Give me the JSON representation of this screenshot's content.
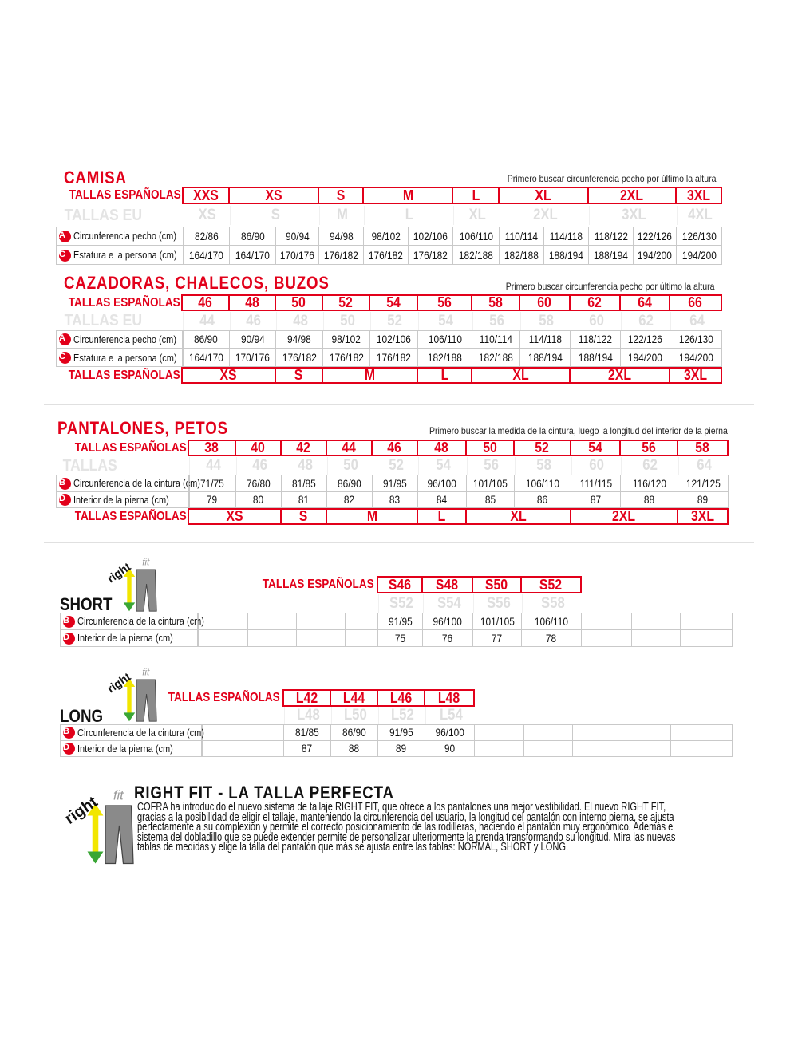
{
  "colors": {
    "accent": "#e2001a",
    "eu_text": "#dedede",
    "grid": "#c9c9c9"
  },
  "camisa": {
    "title": "CAMISA",
    "note": "Primero buscar circunferencia pecho por último la altura",
    "spanish_label": "TALLAS ESPAÑOLAS",
    "eu_label": "TALLAS EU",
    "spanish_sizes": [
      {
        "label": "XXS",
        "span": 1
      },
      {
        "label": "XS",
        "span": 2
      },
      {
        "label": "S",
        "span": 1
      },
      {
        "label": "M",
        "span": 2
      },
      {
        "label": "L",
        "span": 1
      },
      {
        "label": "XL",
        "span": 2
      },
      {
        "label": "2XL",
        "span": 2
      },
      {
        "label": "3XL",
        "span": 1
      }
    ],
    "eu_sizes": [
      {
        "label": "XS",
        "span": 1
      },
      {
        "label": "S",
        "span": 2
      },
      {
        "label": "M",
        "span": 1
      },
      {
        "label": "L",
        "span": 2
      },
      {
        "label": "XL",
        "span": 1
      },
      {
        "label": "2XL",
        "span": 2
      },
      {
        "label": "3XL",
        "span": 2
      },
      {
        "label": "4XL",
        "span": 1
      }
    ],
    "rows": [
      {
        "badge": "A",
        "label": "Circunferencia pecho (cm)",
        "values": [
          "82/86",
          "86/90",
          "90/94",
          "94/98",
          "98/102",
          "102/106",
          "106/110",
          "110/114",
          "114/118",
          "118/122",
          "122/126",
          "126/130"
        ]
      },
      {
        "badge": "C",
        "label": "Estatura e la persona (cm)",
        "values": [
          "164/170",
          "164/170",
          "170/176",
          "176/182",
          "176/182",
          "176/182",
          "182/188",
          "182/188",
          "188/194",
          "188/194",
          "194/200",
          "194/200"
        ]
      }
    ]
  },
  "cazadoras": {
    "title": "CAZADORAS, CHALECOS, BUZOS",
    "note": "Primero buscar circunferencia pecho por último la altura",
    "spanish_label": "TALLAS ESPAÑOLAS",
    "eu_label": "TALLAS EU",
    "spanish_sizes": [
      {
        "label": "46",
        "span": 1
      },
      {
        "label": "48",
        "span": 1
      },
      {
        "label": "50",
        "span": 1
      },
      {
        "label": "52",
        "span": 1
      },
      {
        "label": "54",
        "span": 1
      },
      {
        "label": "56",
        "span": 1
      },
      {
        "label": "58",
        "span": 1
      },
      {
        "label": "60",
        "span": 1
      },
      {
        "label": "62",
        "span": 1
      },
      {
        "label": "64",
        "span": 1
      },
      {
        "label": "66",
        "span": 1
      }
    ],
    "eu_sizes": [
      {
        "label": "44",
        "span": 1
      },
      {
        "label": "46",
        "span": 1
      },
      {
        "label": "48",
        "span": 1
      },
      {
        "label": "50",
        "span": 1
      },
      {
        "label": "52",
        "span": 1
      },
      {
        "label": "54",
        "span": 1
      },
      {
        "label": "56",
        "span": 1
      },
      {
        "label": "58",
        "span": 1
      },
      {
        "label": "60",
        "span": 1
      },
      {
        "label": "62",
        "span": 1
      },
      {
        "label": "64",
        "span": 1
      }
    ],
    "rows": [
      {
        "badge": "A",
        "label": "Circunferencia pecho (cm)",
        "values": [
          "86/90",
          "90/94",
          "94/98",
          "98/102",
          "102/106",
          "106/110",
          "110/114",
          "114/118",
          "118/122",
          "122/126",
          "126/130"
        ]
      },
      {
        "badge": "C",
        "label": "Estatura e la persona (cm)",
        "values": [
          "164/170",
          "170/176",
          "176/182",
          "176/182",
          "176/182",
          "182/188",
          "182/188",
          "188/194",
          "188/194",
          "194/200",
          "194/200"
        ]
      }
    ],
    "spanish_label_2": "TALLAS ESPAÑOLAS",
    "letter_sizes": [
      {
        "label": "XS",
        "span": 2
      },
      {
        "label": "S",
        "span": 1
      },
      {
        "label": "M",
        "span": 2
      },
      {
        "label": "L",
        "span": 1
      },
      {
        "label": "XL",
        "span": 2
      },
      {
        "label": "2XL",
        "span": 2
      },
      {
        "label": "3XL",
        "span": 1
      }
    ]
  },
  "pantalones": {
    "title": "PANTALONES, PETOS",
    "note": "Primero buscar la medida de la cintura, luego la longitud del interior de la pierna",
    "spanish_label": "TALLAS ESPAÑOLAS",
    "eu_label": "TALLAS",
    "spanish_sizes": [
      {
        "label": "38",
        "span": 1
      },
      {
        "label": "40",
        "span": 1
      },
      {
        "label": "42",
        "span": 1
      },
      {
        "label": "44",
        "span": 1
      },
      {
        "label": "46",
        "span": 1
      },
      {
        "label": "48",
        "span": 1
      },
      {
        "label": "50",
        "span": 1
      },
      {
        "label": "52",
        "span": 1
      },
      {
        "label": "54",
        "span": 1
      },
      {
        "label": "56",
        "span": 1
      },
      {
        "label": "58",
        "span": 1
      }
    ],
    "eu_sizes": [
      {
        "label": "44",
        "span": 1
      },
      {
        "label": "46",
        "span": 1
      },
      {
        "label": "48",
        "span": 1
      },
      {
        "label": "50",
        "span": 1
      },
      {
        "label": "52",
        "span": 1
      },
      {
        "label": "54",
        "span": 1
      },
      {
        "label": "56",
        "span": 1
      },
      {
        "label": "58",
        "span": 1
      },
      {
        "label": "60",
        "span": 1
      },
      {
        "label": "62",
        "span": 1
      },
      {
        "label": "64",
        "span": 1
      }
    ],
    "rows": [
      {
        "badge": "B",
        "label": "Circunferencia de la cintura (cm)",
        "values": [
          "71/75",
          "76/80",
          "81/85",
          "86/90",
          "91/95",
          "96/100",
          "101/105",
          "106/110",
          "111/115",
          "116/120",
          "121/125"
        ]
      },
      {
        "badge": "D",
        "label": "Interior de la pierna (cm)",
        "values": [
          "79",
          "80",
          "81",
          "82",
          "83",
          "84",
          "85",
          "86",
          "87",
          "88",
          "89"
        ]
      }
    ],
    "spanish_label_2": "TALLAS ESPAÑOLAS",
    "letter_sizes": [
      {
        "label": "XS",
        "span": 2
      },
      {
        "label": "S",
        "span": 1
      },
      {
        "label": "M",
        "span": 2
      },
      {
        "label": "L",
        "span": 1
      },
      {
        "label": "XL",
        "span": 2
      },
      {
        "label": "2XL",
        "span": 2
      },
      {
        "label": "3XL",
        "span": 1
      }
    ]
  },
  "short": {
    "title": "SHORT",
    "logo_text": "rightfit",
    "spanish_label": "TALLAS ESPAÑOLAS",
    "spanish_sizes": [
      {
        "label": "S46",
        "span": 1
      },
      {
        "label": "S48",
        "span": 1
      },
      {
        "label": "S50",
        "span": 1
      },
      {
        "label": "S52",
        "span": 1
      }
    ],
    "eu_sizes": [
      {
        "label": "S52",
        "span": 1
      },
      {
        "label": "S54",
        "span": 1
      },
      {
        "label": "S56",
        "span": 1
      },
      {
        "label": "S58",
        "span": 1
      }
    ],
    "rows": [
      {
        "badge": "B",
        "label": "Circunferencia de la cintura (cm)",
        "values": [
          "91/95",
          "96/100",
          "101/105",
          "106/110"
        ]
      },
      {
        "badge": "D",
        "label": "Interior de la pierna (cm)",
        "values": [
          "75",
          "76",
          "77",
          "78"
        ]
      }
    ]
  },
  "long": {
    "title": "LONG",
    "logo_text": "rightfit",
    "spanish_label": "TALLAS ESPAÑOLAS",
    "spanish_sizes": [
      {
        "label": "L42",
        "span": 1
      },
      {
        "label": "L44",
        "span": 1
      },
      {
        "label": "L46",
        "span": 1
      },
      {
        "label": "L48",
        "span": 1
      }
    ],
    "eu_sizes": [
      {
        "label": "L48",
        "span": 1
      },
      {
        "label": "L50",
        "span": 1
      },
      {
        "label": "L52",
        "span": 1
      },
      {
        "label": "L54",
        "span": 1
      }
    ],
    "rows": [
      {
        "badge": "B",
        "label": "Circunferencia de la cintura (cm)",
        "values": [
          "81/85",
          "86/90",
          "91/95",
          "96/100"
        ]
      },
      {
        "badge": "D",
        "label": "Interior de la pierna (cm)",
        "values": [
          "87",
          "88",
          "89",
          "90"
        ]
      }
    ]
  },
  "rightfit": {
    "logo_text": "rightfit",
    "title": "RIGHT FIT - LA TALLA PERFECTA",
    "lines": [
      "COFRA ha introducido el nuevo sistema de tallaje RIGHT FIT, que ofrece a los pantalones una mejor vestibilidad. El nuevo RIGHT FIT,",
      "gracias a la posibilidad de eligir el tallaje, manteniendo la circunferencia del usuario, la longitud del pantalón con interno pierna, se ajusta",
      "perfectamente a su complexión y permite el correcto posicionamiento de las rodilleras, haciendo el pantalón muy ergonómico. Además el",
      "sistema del dobladillo que se puede extender permite de personalizar ulteriormente la prenda transformando su longitud. Mira las nuevas",
      "tablas de medidas y elige la talla del pantalón que más se ajusta entre las tablas: NORMAL, SHORT y LONG."
    ]
  }
}
